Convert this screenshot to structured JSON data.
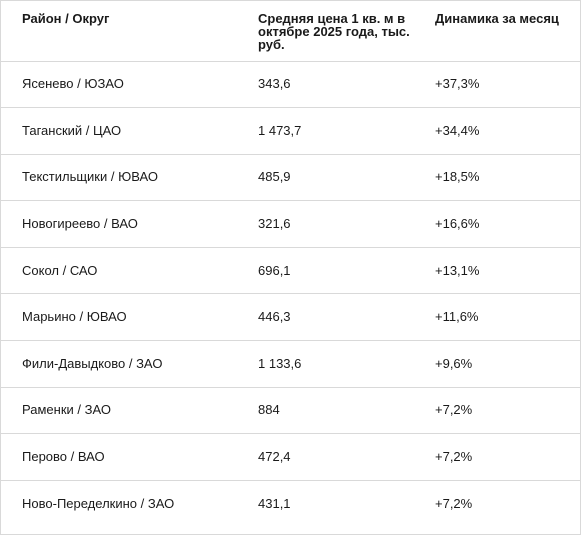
{
  "table": {
    "headers": [
      "Район / Округ",
      "Средняя цена 1 кв. м в октябре 2025 года, тыс. руб.",
      "Динамика за месяц"
    ],
    "rows": [
      [
        "Ясенево / ЮЗАО",
        "343,6",
        "+37,3%"
      ],
      [
        "Таганский / ЦАО",
        "1 473,7",
        "+34,4%"
      ],
      [
        "Текстильщики / ЮВАО",
        "485,9",
        "+18,5%"
      ],
      [
        "Новогиреево / ВАО",
        "321,6",
        "+16,6%"
      ],
      [
        "Сокол / САО",
        "696,1",
        "+13,1%"
      ],
      [
        "Марьино / ЮВАО",
        "446,3",
        "+11,6%"
      ],
      [
        "Фили-Давыдково / ЗАО",
        "1 133,6",
        "+9,6%"
      ],
      [
        "Раменки / ЗАО",
        "884",
        "+7,2%"
      ],
      [
        "Перово / ВАО",
        "472,4",
        "+7,2%"
      ],
      [
        "Ново-Переделкино / ЗАО",
        "431,1",
        "+7,2%"
      ]
    ]
  }
}
